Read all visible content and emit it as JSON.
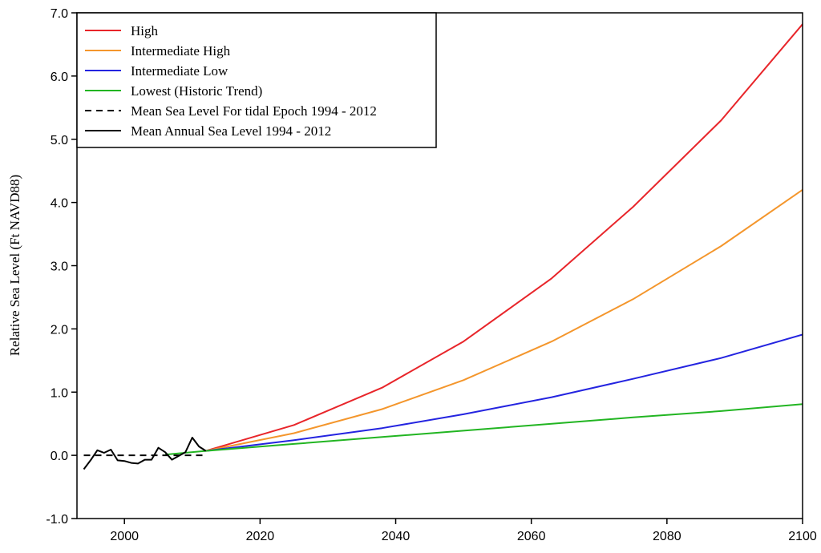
{
  "chart_data": {
    "type": "line",
    "title": "",
    "xlabel": "",
    "ylabel": "Relative Sea Level (Ft NAVD88)",
    "xlim": [
      1993,
      2100
    ],
    "ylim": [
      -1.0,
      7.0
    ],
    "xticks": [
      2000,
      2020,
      2040,
      2060,
      2080,
      2100
    ],
    "yticks": [
      -1.0,
      0.0,
      1.0,
      2.0,
      3.0,
      4.0,
      5.0,
      6.0,
      7.0
    ],
    "xtick_labels": [
      "2000",
      "2020",
      "2040",
      "2060",
      "2080",
      "2100"
    ],
    "ytick_labels": [
      "-1.0",
      "0.0",
      "1.0",
      "2.0",
      "3.0",
      "4.0",
      "5.0",
      "6.0",
      "7.0"
    ],
    "grid": false,
    "legend_position": "top-left",
    "series": [
      {
        "name": "High",
        "color": "#e8252a",
        "style": "solid",
        "x": [
          2012,
          2025,
          2038,
          2050,
          2063,
          2075,
          2088,
          2100
        ],
        "y": [
          0.07,
          0.48,
          1.07,
          1.8,
          2.8,
          3.93,
          5.3,
          6.82
        ]
      },
      {
        "name": "Intermediate High",
        "color": "#f4962c",
        "style": "solid",
        "x": [
          2012,
          2025,
          2038,
          2050,
          2063,
          2075,
          2088,
          2100
        ],
        "y": [
          0.07,
          0.35,
          0.73,
          1.19,
          1.8,
          2.47,
          3.31,
          4.2
        ]
      },
      {
        "name": "Intermediate Low",
        "color": "#2424e0",
        "style": "solid",
        "x": [
          2012,
          2025,
          2038,
          2050,
          2063,
          2075,
          2088,
          2100
        ],
        "y": [
          0.07,
          0.24,
          0.43,
          0.65,
          0.92,
          1.21,
          1.54,
          1.91
        ]
      },
      {
        "name": "Lowest (Historic Trend)",
        "color": "#22b522",
        "style": "solid",
        "x": [
          2006,
          2012,
          2025,
          2038,
          2050,
          2063,
          2075,
          2088,
          2100
        ],
        "y": [
          0.01,
          0.07,
          0.18,
          0.29,
          0.39,
          0.5,
          0.6,
          0.7,
          0.81
        ]
      },
      {
        "name": "Mean Sea Level For tidal Epoch 1994 - 2012",
        "color": "#000000",
        "style": "dashed",
        "x": [
          1994,
          2012
        ],
        "y": [
          0.0,
          0.0
        ]
      },
      {
        "name": "Mean Annual Sea Level 1994 - 2012",
        "color": "#000000",
        "style": "solid",
        "x": [
          1994,
          1995,
          1996,
          1997,
          1998,
          1999,
          2000,
          2001,
          2002,
          2003,
          2004,
          2005,
          2006,
          2007,
          2008,
          2009,
          2010,
          2011,
          2012
        ],
        "y": [
          -0.22,
          -0.08,
          0.08,
          0.04,
          0.09,
          -0.08,
          -0.09,
          -0.12,
          -0.13,
          -0.07,
          -0.07,
          0.12,
          0.05,
          -0.07,
          -0.01,
          0.05,
          0.28,
          0.14,
          0.07
        ]
      }
    ]
  }
}
